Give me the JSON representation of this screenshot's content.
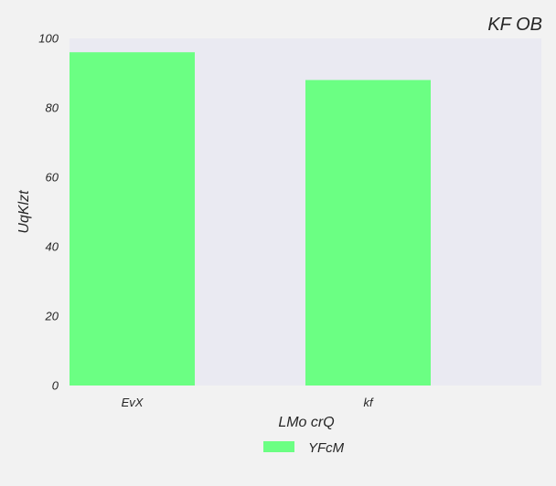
{
  "chart_data": {
    "type": "bar",
    "title": "KF OB",
    "xlabel": "LMo crQ",
    "ylabel": "UqKlzt",
    "categories": [
      "EvX",
      "kf"
    ],
    "series": [
      {
        "name": "YFcM",
        "values": [
          96,
          88
        ],
        "color": "#6bff83"
      }
    ],
    "ylim": [
      0,
      100
    ],
    "yticks": [
      0,
      20,
      40,
      60,
      80,
      100
    ],
    "grid": false,
    "legend": "bottom-center",
    "plot_background": "#eaeaf2",
    "page_background": "#f2f2f2"
  }
}
